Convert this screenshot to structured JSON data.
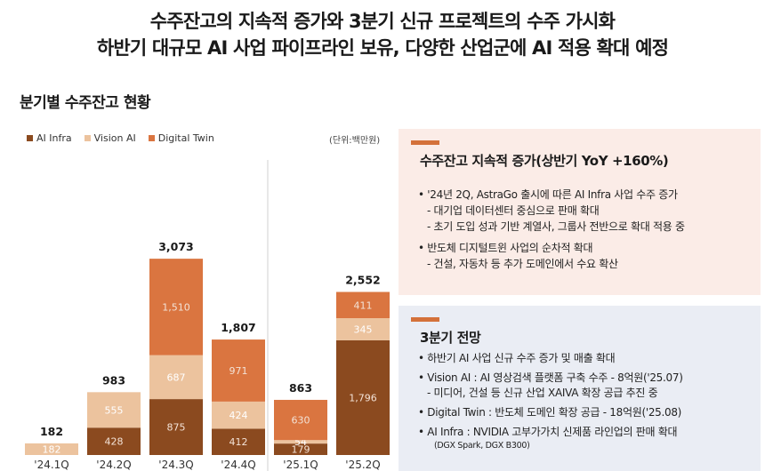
{
  "header": {
    "title_line1": "수주잔고의 지속적 증가와 3분기 신규 프로젝트의 수주 가시화",
    "title_line2": "하반기 대규모 AI 사업 파이프라인 보유, 다양한 산업군에 AI 적용 확대 예정"
  },
  "section_title": "분기별 수주잔고 현황",
  "chart_data": {
    "type": "bar",
    "stacked": true,
    "unit": "(단위:백만원)",
    "categories": [
      "'24.1Q",
      "'24.2Q",
      "'24.3Q",
      "'24.4Q",
      "'25.1Q",
      "'25.2Q"
    ],
    "totals": [
      182,
      983,
      3073,
      1807,
      863,
      2552
    ],
    "series": [
      {
        "name": "AI Infra",
        "color": "#8b4a1f",
        "values": [
          0,
          428,
          875,
          412,
          179,
          1796
        ]
      },
      {
        "name": "Vision AI",
        "color": "#ecc39e",
        "values": [
          182,
          555,
          687,
          424,
          54,
          345
        ]
      },
      {
        "name": "Digital Twin",
        "color": "#da7540",
        "values": [
          0,
          0,
          1510,
          971,
          630,
          411
        ]
      }
    ],
    "ylim": [
      0,
      3300
    ],
    "legend_position": "top-left",
    "divider_after_index": 3
  },
  "panel1": {
    "heading": "수주잔고 지속적 증가(상반기 YoY +160%)",
    "b1": "• '24년 2Q, AstraGo 출시에 따른 AI Infra 사업 수주 증가",
    "b1_sub1": "- 대기업 데이터센터 중심으로 판매 확대",
    "b1_sub2": "- 초기 도입 성과 기반 계열사, 그룹사 전반으로 확대 적용 중",
    "b2": "• 반도체 디지털트윈 사업의 순차적 확대",
    "b2_sub1": "- 건설, 자동차 등 추가 도메인에서 수요 확산"
  },
  "panel2": {
    "heading": "3분기 전망",
    "b1": "• 하반기 AI 사업 신규 수주 증가 및 매출 확대",
    "b2": "• Vision AI : AI 영상검색 플랫폼 구축 수주 - 8억원('25.07)",
    "b2_sub1": "- 미디어, 건설 등 신규 산업 XAIVA 확장 공급 추진 중",
    "b3": "• Digital Twin : 반도체 도메인 확장 공급 - 18억원('25.08)",
    "b4": "• AI Infra : NVIDIA 고부가가치 신제품 라인업의 판매 확대",
    "b4_note": "(DGX Spark, DGX B300)"
  }
}
